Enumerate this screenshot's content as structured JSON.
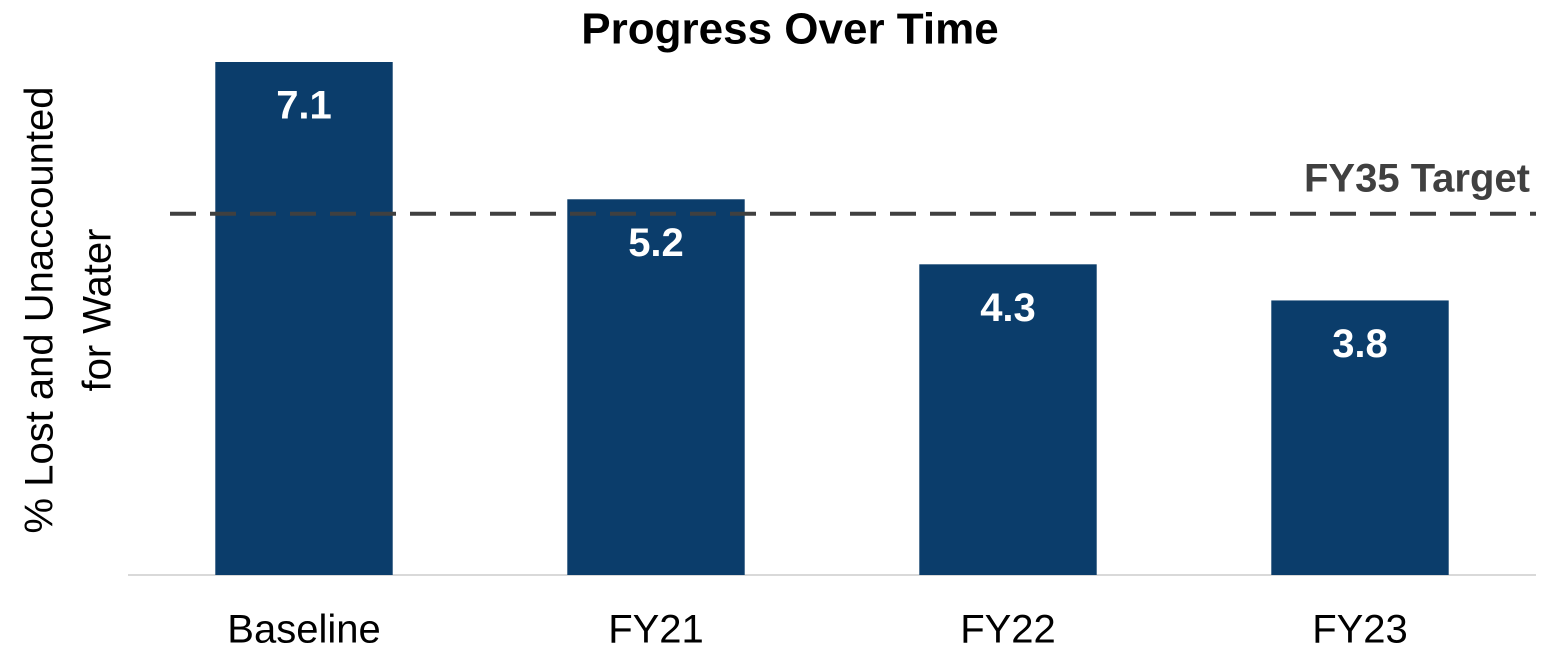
{
  "chart_data": {
    "type": "bar",
    "title": "Progress Over Time",
    "y_label": [
      "% Lost and Unaccounted",
      "for Water"
    ],
    "categories": [
      "Baseline",
      "FY21",
      "FY22",
      "FY23"
    ],
    "values": [
      7.1,
      5.2,
      4.3,
      3.8
    ],
    "color": "#0b3d6b",
    "ylim": [
      0,
      7.1
    ],
    "target": {
      "label": "FY35 Target",
      "value": 5.0,
      "color": "#404040"
    }
  }
}
